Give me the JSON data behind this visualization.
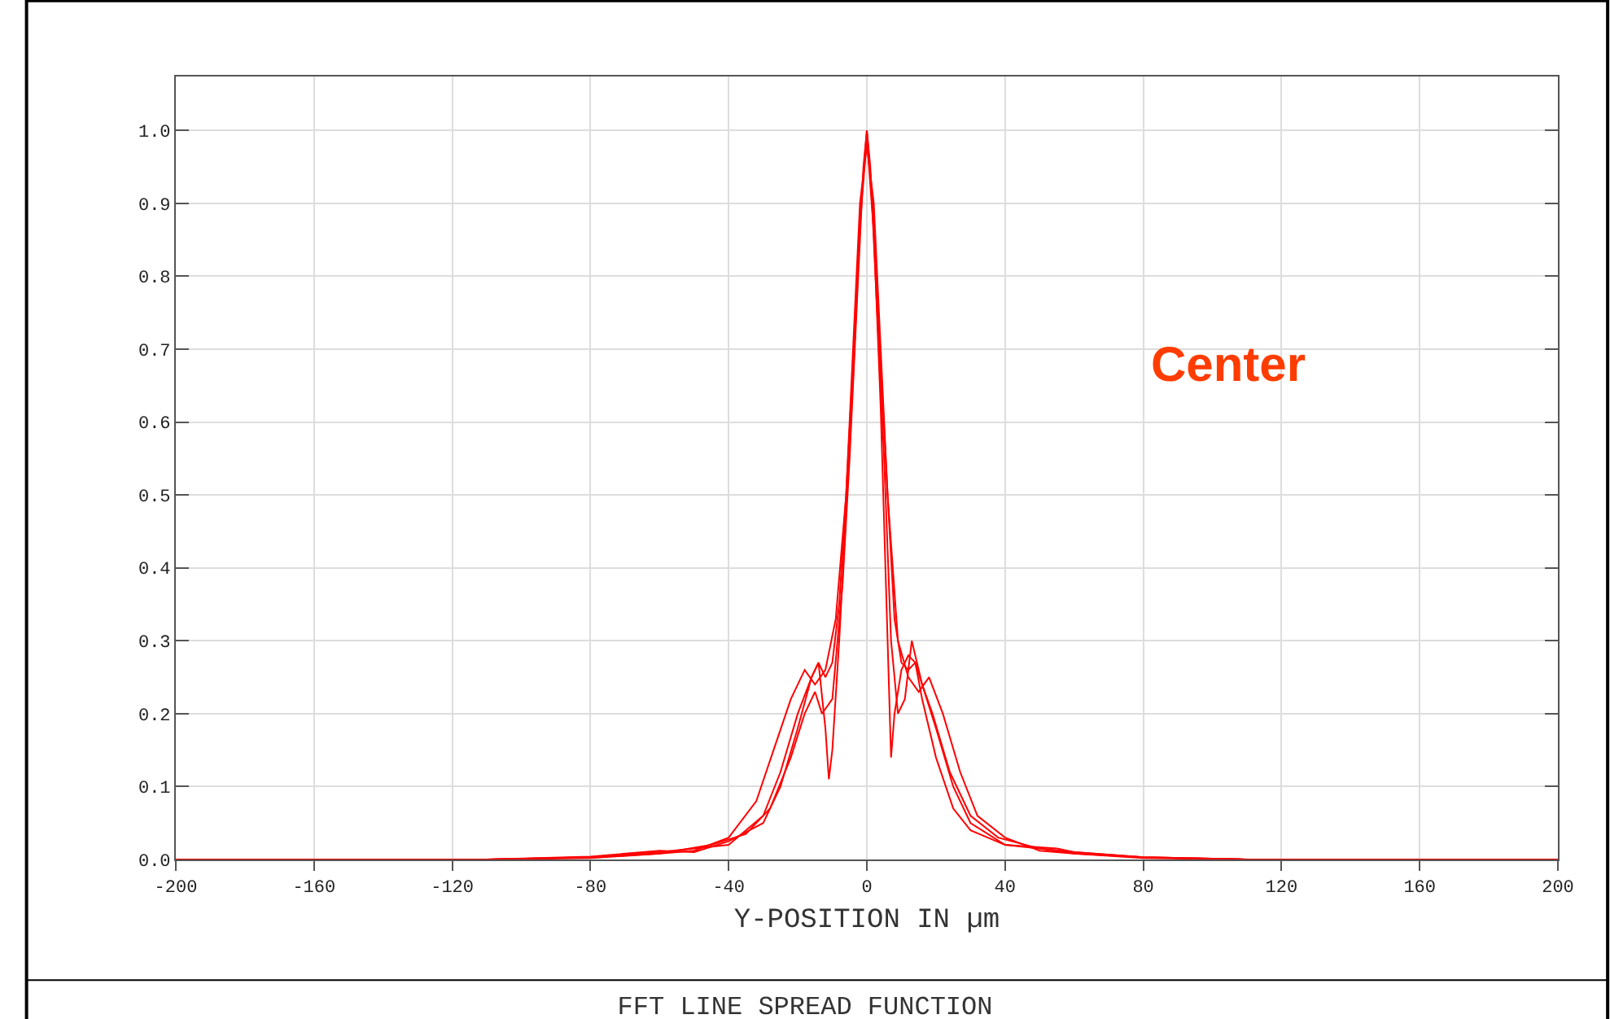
{
  "chart_data": {
    "type": "line",
    "title": "FFT LINE SPREAD FUNCTION",
    "xlabel": "Y-POSITION IN µm",
    "annotations": [
      "Center"
    ],
    "xlim": [
      -200,
      200
    ],
    "xticks": [
      -200,
      -160,
      -120,
      -80,
      -40,
      0,
      40,
      80,
      120,
      160,
      200
    ],
    "ylim": [
      0,
      1.074
    ],
    "yticks": [
      {
        "value": 0,
        "label": "0.0"
      },
      {
        "value": 0.1,
        "label": "0.1"
      },
      {
        "value": 0.2,
        "label": "0.2"
      },
      {
        "value": 0.3,
        "label": "0.3"
      },
      {
        "value": 0.4,
        "label": "0.4"
      },
      {
        "value": 0.5,
        "label": "0.5"
      },
      {
        "value": 0.6,
        "label": "0.6"
      },
      {
        "value": 0.7,
        "label": "0.7"
      },
      {
        "value": 0.8,
        "label": "0.8"
      },
      {
        "value": 0.9,
        "label": "0.9"
      },
      {
        "value": 1.0,
        "label": "1.0"
      }
    ],
    "grid": true,
    "line_style": "solid",
    "marker": "none",
    "series": [
      {
        "color": "#ff0000",
        "x": [
          -200,
          -110,
          -80,
          -60,
          -50,
          -40,
          -30,
          -25,
          -20,
          -16,
          -14,
          -12,
          -10,
          -8,
          -6,
          -4,
          -2,
          0,
          2,
          4,
          6,
          8,
          10,
          12,
          14,
          16,
          20,
          25,
          30,
          40,
          50,
          60,
          80,
          110,
          200
        ],
        "values": [
          0,
          0,
          0.003,
          0.01,
          0.015,
          0.02,
          0.06,
          0.12,
          0.2,
          0.25,
          0.27,
          0.25,
          0.27,
          0.35,
          0.5,
          0.68,
          0.88,
          1.0,
          0.88,
          0.68,
          0.5,
          0.33,
          0.27,
          0.26,
          0.27,
          0.24,
          0.18,
          0.1,
          0.05,
          0.02,
          0.015,
          0.01,
          0.003,
          0,
          0
        ]
      },
      {
        "color": "#ff0000",
        "x": [
          -200,
          -110,
          -80,
          -60,
          -50,
          -40,
          -30,
          -25,
          -20,
          -16,
          -14,
          -12,
          -11,
          -10,
          -8,
          -6,
          -4,
          -2,
          0,
          2,
          4,
          6,
          7,
          8,
          10,
          12,
          14,
          16,
          20,
          25,
          30,
          40,
          55,
          60,
          80,
          110,
          200
        ],
        "values": [
          0,
          0,
          0.004,
          0.012,
          0.01,
          0.025,
          0.05,
          0.1,
          0.18,
          0.25,
          0.27,
          0.18,
          0.11,
          0.15,
          0.3,
          0.48,
          0.66,
          0.87,
          0.99,
          0.86,
          0.62,
          0.3,
          0.14,
          0.2,
          0.26,
          0.28,
          0.27,
          0.22,
          0.14,
          0.07,
          0.04,
          0.02,
          0.015,
          0.01,
          0.003,
          0,
          0
        ]
      },
      {
        "color": "#ff0000",
        "x": [
          -200,
          -110,
          -80,
          -60,
          -50,
          -40,
          -32,
          -27,
          -22,
          -18,
          -15,
          -12,
          -9,
          -6,
          -4,
          -2,
          0,
          2,
          4,
          6,
          9,
          12,
          15,
          18,
          22,
          27,
          32,
          40,
          50,
          60,
          80,
          110,
          200
        ],
        "values": [
          0,
          0,
          0.002,
          0.008,
          0.012,
          0.03,
          0.08,
          0.15,
          0.22,
          0.26,
          0.24,
          0.26,
          0.33,
          0.5,
          0.7,
          0.9,
          0.98,
          0.9,
          0.7,
          0.5,
          0.3,
          0.25,
          0.23,
          0.25,
          0.2,
          0.12,
          0.06,
          0.03,
          0.012,
          0.008,
          0.002,
          0,
          0
        ]
      },
      {
        "color": "#ff0000",
        "x": [
          -200,
          -110,
          -80,
          -60,
          -45,
          -35,
          -28,
          -22,
          -18,
          -15,
          -13,
          -10,
          -7,
          -5,
          -3,
          -1,
          0,
          1,
          3,
          5,
          7,
          9,
          11,
          13,
          16,
          19,
          24,
          30,
          38,
          50,
          60,
          80,
          110,
          200
        ],
        "values": [
          0,
          0,
          0.003,
          0.008,
          0.02,
          0.035,
          0.07,
          0.14,
          0.2,
          0.23,
          0.2,
          0.22,
          0.38,
          0.55,
          0.75,
          0.95,
          1.0,
          0.95,
          0.75,
          0.55,
          0.3,
          0.2,
          0.22,
          0.3,
          0.24,
          0.2,
          0.12,
          0.06,
          0.03,
          0.015,
          0.008,
          0.003,
          0,
          0
        ]
      }
    ]
  }
}
